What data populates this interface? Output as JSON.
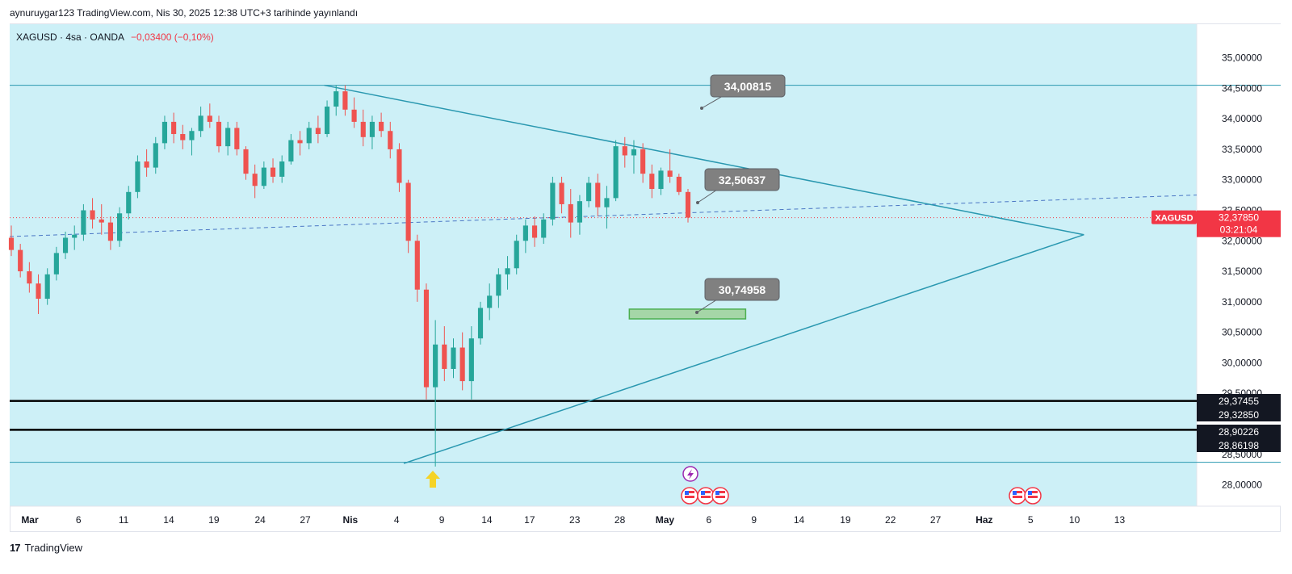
{
  "header": {
    "published_line": "aynuruygar123 TradingView.com, Nis 30, 2025 12:38 UTC+3 tarihinde yayınlandı"
  },
  "legend": {
    "symbol": "XAGUSD · 4sa · OANDA",
    "change": "−0,03400 (−0,10%)"
  },
  "footer": {
    "logo": "17",
    "brand": "TradingView"
  },
  "colors": {
    "bg": "#cdf0f7",
    "bull": "#26a69a",
    "bear": "#ef5350",
    "trend": "#2a98b0",
    "box": "#4caf50",
    "badge": "#808080",
    "price_tag": "#f23645"
  },
  "chart_data": {
    "type": "candlestick",
    "symbol": "XAGUSD",
    "timeframe": "4sa",
    "ylim": [
      27.65,
      35.55
    ],
    "y_ticks": [
      "35,00000",
      "34,50000",
      "34,00000",
      "33,50000",
      "33,00000",
      "32,50000",
      "32,00000",
      "31,50000",
      "31,00000",
      "30,50000",
      "30,00000",
      "29,50000",
      "28,50000",
      "28,00000"
    ],
    "y_tick_values": [
      35.0,
      34.5,
      34.0,
      33.5,
      33.0,
      32.5,
      32.0,
      31.5,
      31.0,
      30.5,
      30.0,
      29.5,
      28.5,
      28.0
    ],
    "x_ticks": [
      "Mar",
      "6",
      "11",
      "14",
      "19",
      "24",
      "27",
      "Nis",
      "4",
      "9",
      "14",
      "17",
      "23",
      "28",
      "May",
      "6",
      "9",
      "14",
      "19",
      "22",
      "27",
      "Haz",
      "5",
      "10",
      "13"
    ],
    "x_tick_pos": [
      0.017,
      0.058,
      0.096,
      0.134,
      0.172,
      0.211,
      0.249,
      0.287,
      0.326,
      0.364,
      0.402,
      0.438,
      0.476,
      0.514,
      0.552,
      0.589,
      0.627,
      0.665,
      0.704,
      0.742,
      0.78,
      0.821,
      0.86,
      0.897,
      0.935
    ],
    "ohlc": [
      [
        32.05,
        32.25,
        31.75,
        31.85
      ],
      [
        31.85,
        31.95,
        31.4,
        31.5
      ],
      [
        31.5,
        31.65,
        31.15,
        31.3
      ],
      [
        31.3,
        31.45,
        30.8,
        31.05
      ],
      [
        31.05,
        31.55,
        30.95,
        31.45
      ],
      [
        31.45,
        31.9,
        31.35,
        31.8
      ],
      [
        31.8,
        32.15,
        31.7,
        32.05
      ],
      [
        32.05,
        32.25,
        31.85,
        32.1
      ],
      [
        32.1,
        32.6,
        32.0,
        32.5
      ],
      [
        32.5,
        32.7,
        32.2,
        32.35
      ],
      [
        32.35,
        32.6,
        32.1,
        32.3
      ],
      [
        32.3,
        32.4,
        31.85,
        32.0
      ],
      [
        32.0,
        32.55,
        31.9,
        32.45
      ],
      [
        32.45,
        32.9,
        32.35,
        32.8
      ],
      [
        32.8,
        33.4,
        32.7,
        33.3
      ],
      [
        33.3,
        33.5,
        33.05,
        33.2
      ],
      [
        33.2,
        33.7,
        33.1,
        33.6
      ],
      [
        33.6,
        34.05,
        33.5,
        33.95
      ],
      [
        33.95,
        34.1,
        33.6,
        33.75
      ],
      [
        33.75,
        33.9,
        33.5,
        33.65
      ],
      [
        33.65,
        33.85,
        33.4,
        33.8
      ],
      [
        33.8,
        34.2,
        33.7,
        34.05
      ],
      [
        34.05,
        34.25,
        33.85,
        33.95
      ],
      [
        33.95,
        34.05,
        33.45,
        33.55
      ],
      [
        33.55,
        33.95,
        33.4,
        33.85
      ],
      [
        33.85,
        33.95,
        33.4,
        33.5
      ],
      [
        33.5,
        33.55,
        33.0,
        33.1
      ],
      [
        33.1,
        33.25,
        32.7,
        32.9
      ],
      [
        32.9,
        33.3,
        32.85,
        33.2
      ],
      [
        33.2,
        33.35,
        32.95,
        33.05
      ],
      [
        33.05,
        33.4,
        32.95,
        33.3
      ],
      [
        33.3,
        33.75,
        33.25,
        33.65
      ],
      [
        33.65,
        33.8,
        33.4,
        33.6
      ],
      [
        33.6,
        33.95,
        33.5,
        33.85
      ],
      [
        33.85,
        34.05,
        33.6,
        33.75
      ],
      [
        33.75,
        34.3,
        33.7,
        34.2
      ],
      [
        34.2,
        34.55,
        34.05,
        34.45
      ],
      [
        34.45,
        34.55,
        34.05,
        34.15
      ],
      [
        34.15,
        34.35,
        33.85,
        33.95
      ],
      [
        33.95,
        34.15,
        33.55,
        33.7
      ],
      [
        33.7,
        34.05,
        33.5,
        33.95
      ],
      [
        33.95,
        34.1,
        33.7,
        33.8
      ],
      [
        33.8,
        33.95,
        33.35,
        33.5
      ],
      [
        33.5,
        33.6,
        32.8,
        32.95
      ],
      [
        32.95,
        33.0,
        31.8,
        32.0
      ],
      [
        32.0,
        32.1,
        31.0,
        31.2
      ],
      [
        31.2,
        31.3,
        29.4,
        29.6
      ],
      [
        29.6,
        30.7,
        28.3,
        30.3
      ],
      [
        30.3,
        30.6,
        29.7,
        29.9
      ],
      [
        29.9,
        30.4,
        29.75,
        30.25
      ],
      [
        30.25,
        30.5,
        29.55,
        29.7
      ],
      [
        29.7,
        30.6,
        29.4,
        30.4
      ],
      [
        30.4,
        31.0,
        30.3,
        30.9
      ],
      [
        30.9,
        31.3,
        30.7,
        31.1
      ],
      [
        31.1,
        31.55,
        30.9,
        31.45
      ],
      [
        31.45,
        31.75,
        31.2,
        31.55
      ],
      [
        31.55,
        32.1,
        31.45,
        32.0
      ],
      [
        32.0,
        32.35,
        31.8,
        32.25
      ],
      [
        32.25,
        32.4,
        31.9,
        32.05
      ],
      [
        32.05,
        32.45,
        31.95,
        32.35
      ],
      [
        32.35,
        33.05,
        32.25,
        32.95
      ],
      [
        32.95,
        33.05,
        32.45,
        32.6
      ],
      [
        32.6,
        32.85,
        32.05,
        32.3
      ],
      [
        32.3,
        32.75,
        32.1,
        32.65
      ],
      [
        32.65,
        33.05,
        32.55,
        32.95
      ],
      [
        32.95,
        33.1,
        32.4,
        32.55
      ],
      [
        32.55,
        32.9,
        32.2,
        32.7
      ],
      [
        32.7,
        33.65,
        32.65,
        33.55
      ],
      [
        33.55,
        33.7,
        33.2,
        33.4
      ],
      [
        33.4,
        33.65,
        33.1,
        33.5
      ],
      [
        33.5,
        33.6,
        32.95,
        33.1
      ],
      [
        33.1,
        33.25,
        32.7,
        32.85
      ],
      [
        32.85,
        33.2,
        32.75,
        33.15
      ],
      [
        33.15,
        33.5,
        32.95,
        33.05
      ],
      [
        33.05,
        33.1,
        32.75,
        32.8
      ],
      [
        32.8,
        32.85,
        32.3,
        32.38
      ]
    ],
    "annotations": [
      {
        "label": "34,00815",
        "value": 34.00815
      },
      {
        "label": "32,50637",
        "value": 32.50637
      },
      {
        "label": "30,74958",
        "value": 30.74958
      }
    ],
    "horizontal_levels": [
      {
        "value": 34.55,
        "style": "thin",
        "color": "#2a98b0"
      },
      {
        "value": 29.37455,
        "style": "thick",
        "color": "#000000",
        "label": "29,37455"
      },
      {
        "value": 28.90226,
        "style": "thick",
        "color": "#000000",
        "label": "28,90226"
      },
      {
        "value": 28.37,
        "style": "thin",
        "color": "#2a98b0"
      }
    ],
    "level_labels": [
      "29,32850",
      "28,86198"
    ],
    "current_price": {
      "symbol": "XAGUSD",
      "value": "32,37850",
      "countdown": "03:21:04"
    },
    "triangle": {
      "upper_start": [
        0.265,
        34.55
      ],
      "lower_start": [
        0.332,
        28.35
      ],
      "apex": [
        0.905,
        32.1
      ]
    },
    "dashed_trend": {
      "start": [
        0.0,
        32.07
      ],
      "end": [
        1.0,
        32.75
      ]
    },
    "target_zone": {
      "low": 30.72,
      "high": 30.88,
      "x0": 0.522,
      "x1": 0.62
    }
  }
}
